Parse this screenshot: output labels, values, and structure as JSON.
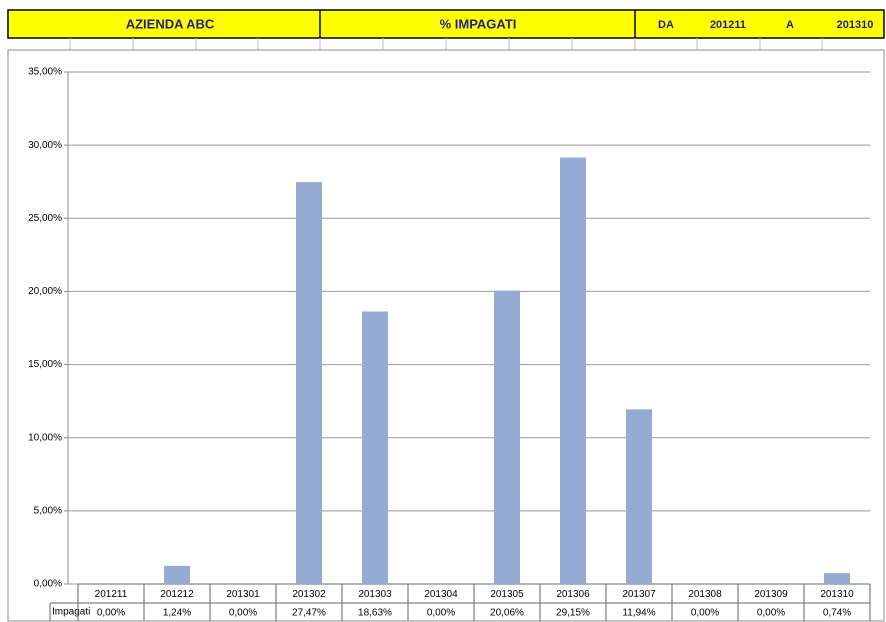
{
  "header": {
    "cells": [
      "AZIENDA ABC",
      "% IMPAGATI",
      "DA",
      "201211",
      "A",
      "201310"
    ]
  },
  "chart_data": {
    "type": "bar",
    "categories": [
      "201211",
      "201212",
      "201301",
      "201302",
      "201303",
      "201304",
      "201305",
      "201306",
      "201307",
      "201308",
      "201309",
      "201310"
    ],
    "series": [
      {
        "name": "Impagati",
        "color": "#95abd3",
        "values": [
          0,
          1.24,
          0,
          27.47,
          18.63,
          0,
          20.06,
          29.15,
          11.94,
          0,
          0,
          0.74
        ],
        "value_labels": [
          "0,00%",
          "1,24%",
          "0,00%",
          "27,47%",
          "18,63%",
          "0,00%",
          "20,06%",
          "29,15%",
          "11,94%",
          "0,00%",
          "0,00%",
          "0,74%"
        ]
      }
    ],
    "ylim": [
      0,
      35
    ],
    "yticks": [
      {
        "value": 0,
        "label": "0,00%"
      },
      {
        "value": 5,
        "label": "5,00%"
      },
      {
        "value": 10,
        "label": "10,00%"
      },
      {
        "value": 15,
        "label": "15,00%"
      },
      {
        "value": 20,
        "label": "20,00%"
      },
      {
        "value": 25,
        "label": "25,00%"
      },
      {
        "value": 30,
        "label": "30,00%"
      },
      {
        "value": 35,
        "label": "35,00%"
      }
    ],
    "grid": true
  }
}
